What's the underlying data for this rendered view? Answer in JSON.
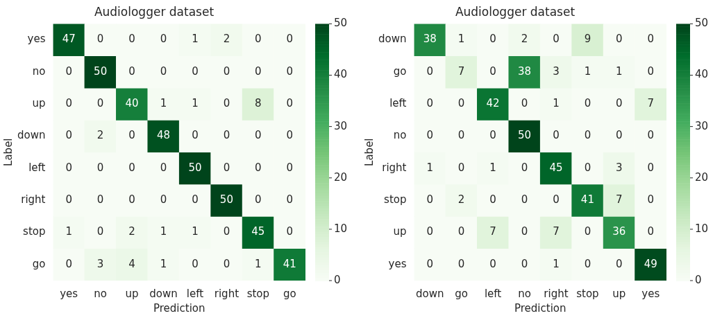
{
  "chart_data": [
    {
      "type": "heatmap",
      "title": "Audiologger dataset",
      "xlabel": "Prediction",
      "ylabel": "Label",
      "categories": [
        "yes",
        "no",
        "up",
        "down",
        "left",
        "right",
        "stop",
        "go"
      ],
      "y_categories": [
        "yes",
        "no",
        "up",
        "down",
        "left",
        "right",
        "stop",
        "go"
      ],
      "cells": [
        [
          47,
          0,
          0,
          0,
          1,
          2,
          0,
          0
        ],
        [
          0,
          50,
          0,
          0,
          0,
          0,
          0,
          0
        ],
        [
          0,
          0,
          40,
          1,
          1,
          0,
          8,
          0
        ],
        [
          0,
          2,
          0,
          48,
          0,
          0,
          0,
          0
        ],
        [
          0,
          0,
          0,
          0,
          50,
          0,
          0,
          0
        ],
        [
          0,
          0,
          0,
          0,
          0,
          50,
          0,
          0
        ],
        [
          1,
          0,
          2,
          1,
          1,
          0,
          45,
          0
        ],
        [
          0,
          3,
          4,
          1,
          0,
          0,
          1,
          41
        ]
      ],
      "clim": [
        0,
        50
      ],
      "cticks": [
        0,
        10,
        20,
        30,
        40,
        50
      ],
      "data_labels": true
    },
    {
      "type": "heatmap",
      "title": "Audiologger dataset",
      "xlabel": "Prediction",
      "ylabel": "Label",
      "categories": [
        "down",
        "go",
        "left",
        "no",
        "right",
        "stop",
        "up",
        "yes"
      ],
      "y_categories": [
        "down",
        "go",
        "left",
        "no",
        "right",
        "stop",
        "up",
        "yes"
      ],
      "cells": [
        [
          38,
          1,
          0,
          2,
          0,
          9,
          0,
          0
        ],
        [
          0,
          7,
          0,
          38,
          3,
          1,
          1,
          0
        ],
        [
          0,
          0,
          42,
          0,
          1,
          0,
          0,
          7
        ],
        [
          0,
          0,
          0,
          50,
          0,
          0,
          0,
          0
        ],
        [
          1,
          0,
          1,
          0,
          45,
          0,
          3,
          0
        ],
        [
          0,
          2,
          0,
          0,
          0,
          41,
          7,
          0
        ],
        [
          0,
          0,
          7,
          0,
          7,
          0,
          36,
          0
        ],
        [
          0,
          0,
          0,
          0,
          1,
          0,
          0,
          49
        ]
      ],
      "clim": [
        0,
        50
      ],
      "cticks": [
        0,
        10,
        20,
        30,
        40,
        50
      ],
      "data_labels": true
    }
  ]
}
